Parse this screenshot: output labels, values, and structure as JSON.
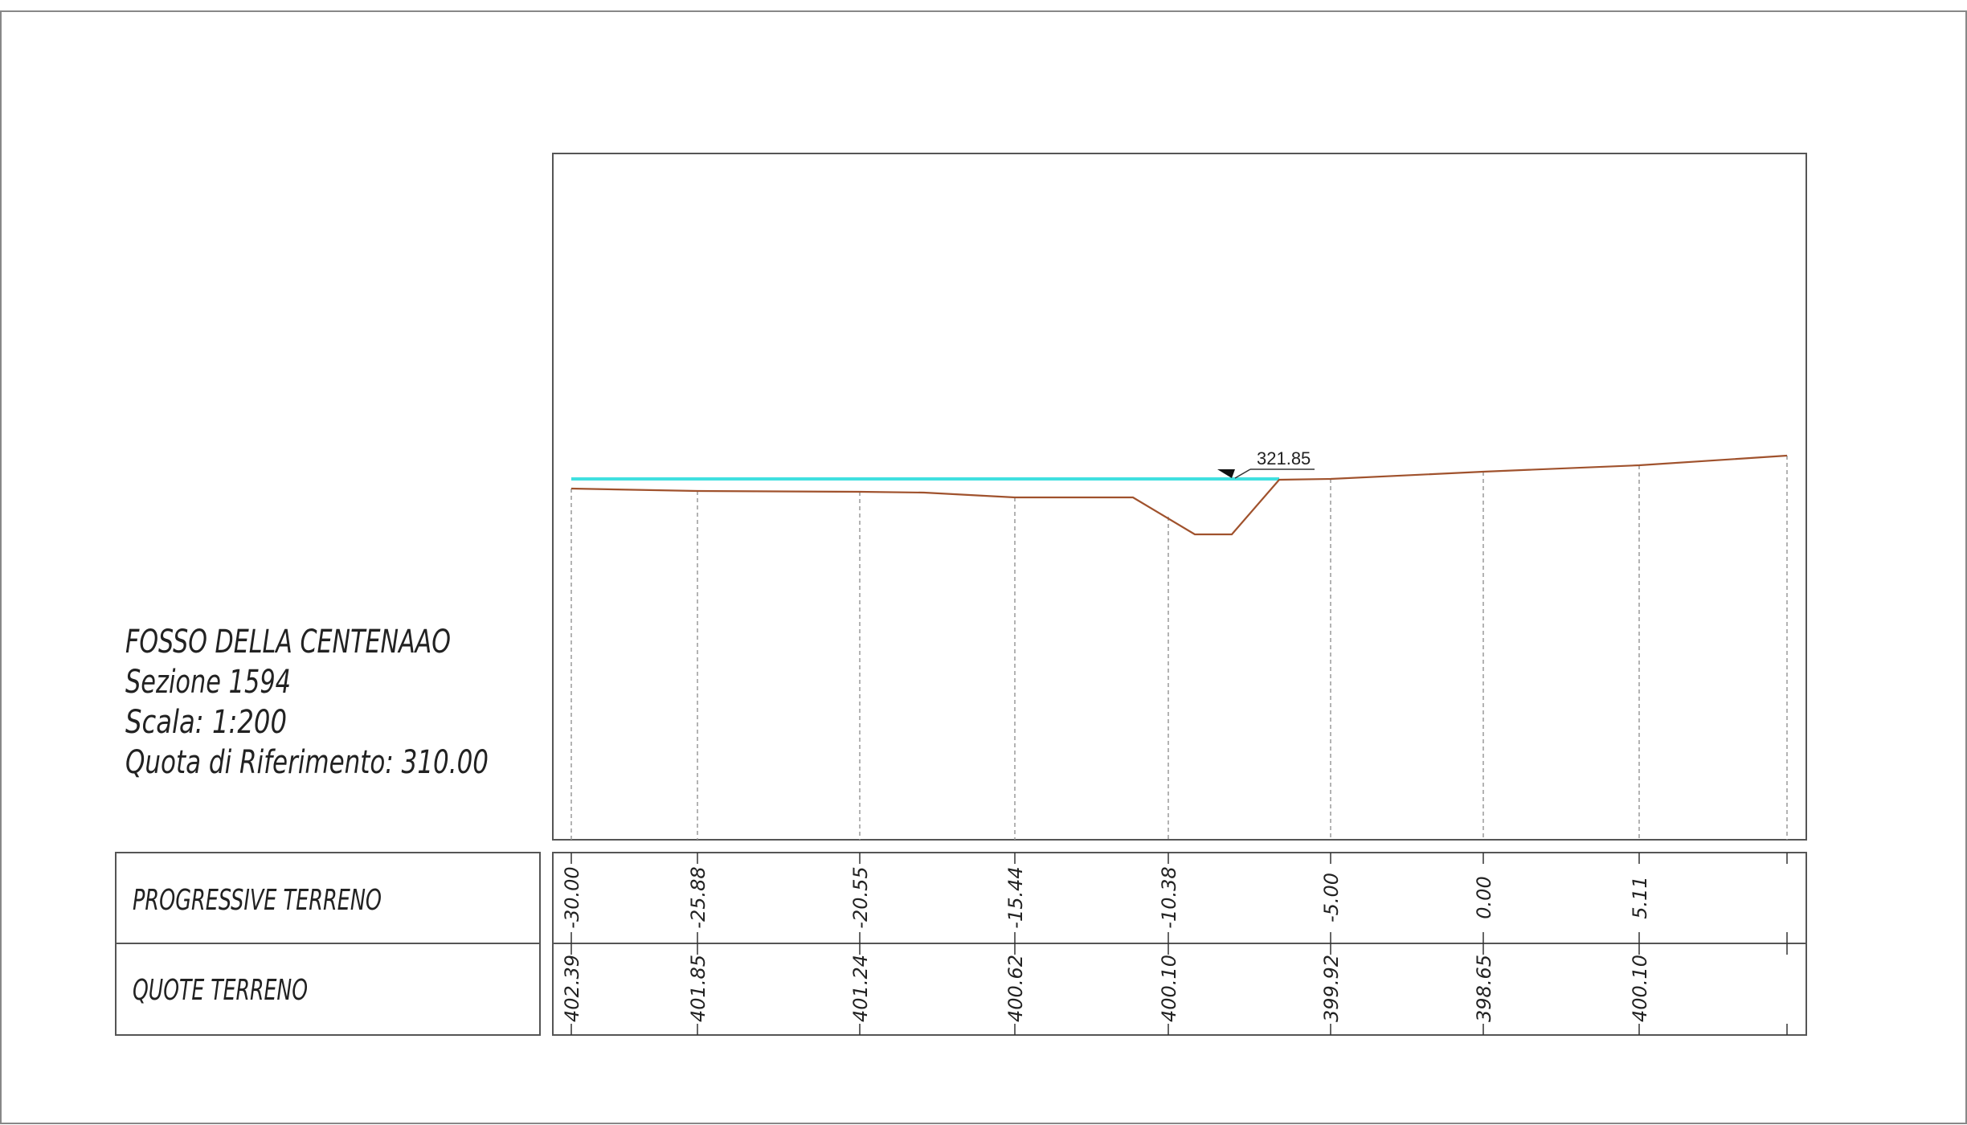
{
  "title_block": {
    "line1": "FOSSO DELLA CENTENAAO",
    "line2": "Sezione 1594",
    "line3": "Scala: 1:200",
    "line4": "Quota di Riferimento: 310.00"
  },
  "water_level_label": "321.85",
  "table": {
    "row1_header": "PROGRESSIVE TERRENO",
    "row2_header": "QUOTE TERRENO",
    "progressive": [
      "-30.00",
      "-25.88",
      "-20.55",
      "-15.44",
      "-10.38",
      "-5.00",
      "0.00",
      "5.11"
    ],
    "quote": [
      "402.39",
      "401.85",
      "401.24",
      "400.62",
      "400.10",
      "399.92",
      "398.65",
      "400.10"
    ]
  },
  "colors": {
    "frame": "#555555",
    "ground": "#a0522d",
    "water": "#40e0e0",
    "guide": "#9a9a9a",
    "text": "#222222"
  }
}
